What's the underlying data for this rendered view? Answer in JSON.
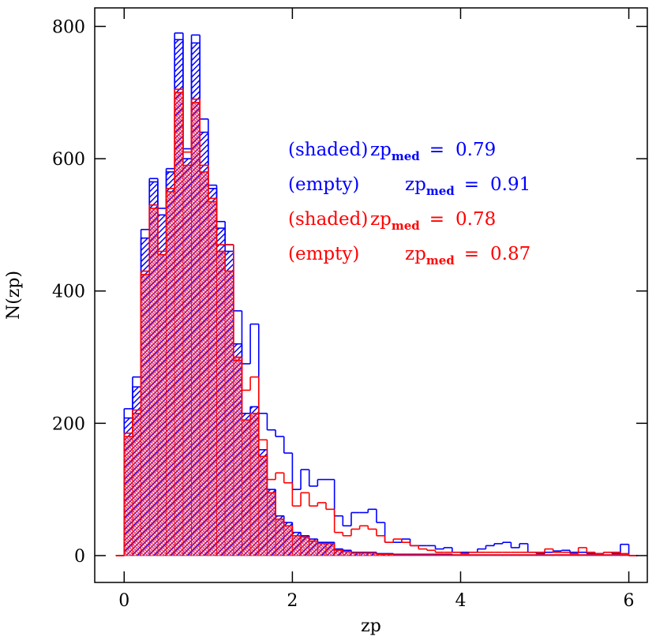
{
  "chart_data": {
    "type": "histogram",
    "x_label": "zp",
    "y_label": "N(zp)",
    "legend_symbol": "zp",
    "legend_subscript": "med",
    "legend_equals": "=",
    "xlim": [
      -0.35,
      6.22
    ],
    "ylim": [
      -40.6,
      828
    ],
    "xticks": [
      0,
      2,
      4,
      6
    ],
    "yticks": [
      0,
      200,
      400,
      600,
      800
    ],
    "bins": [
      -0.1,
      0,
      0.1,
      0.2,
      0.3,
      0.4,
      0.5,
      0.6,
      0.7,
      0.8,
      0.9,
      1,
      1.1,
      1.2,
      1.3,
      1.4,
      1.5,
      1.6,
      1.7,
      1.8,
      1.9,
      2,
      2.1,
      2.2,
      2.3,
      2.4,
      2.5,
      2.6,
      2.7,
      2.8,
      2.9,
      3,
      3.1,
      3.2,
      3.3,
      3.4,
      3.5,
      3.6,
      3.7,
      3.8,
      3.9,
      4,
      4.1,
      4.2,
      4.3,
      4.4,
      4.5,
      4.6,
      4.7,
      4.8,
      4.9,
      5,
      5.1,
      5.2,
      5.3,
      5.4,
      5.5,
      5.6,
      5.7,
      5.8,
      5.9,
      6,
      6.1
    ],
    "series": [
      {
        "name": "(shaded)",
        "color": "#0000ff",
        "fill": "hatched",
        "median": 0.79,
        "values": [
          0,
          208,
          255,
          480,
          565,
          515,
          580,
          780,
          600,
          775,
          640,
          555,
          495,
          460,
          320,
          215,
          225,
          160,
          100,
          60,
          50,
          35,
          30,
          25,
          20,
          20,
          10,
          8,
          5,
          5,
          5,
          3,
          3,
          2,
          2,
          2,
          2,
          2,
          2,
          2,
          1,
          1,
          1,
          1,
          1,
          1,
          1,
          1,
          1,
          1,
          1,
          1,
          1,
          1,
          1,
          1,
          1,
          1,
          1,
          1,
          1,
          0
        ]
      },
      {
        "name": "(empty)",
        "color": "#0000ff",
        "fill": "none",
        "median": 0.91,
        "values": [
          0,
          222,
          270,
          493,
          570,
          525,
          585,
          790,
          615,
          787,
          660,
          560,
          505,
          470,
          370,
          290,
          350,
          215,
          190,
          180,
          155,
          100,
          130,
          105,
          115,
          115,
          60,
          45,
          65,
          65,
          70,
          50,
          20,
          20,
          25,
          15,
          15,
          15,
          10,
          12,
          5,
          5,
          5,
          10,
          15,
          18,
          20,
          12,
          18,
          5,
          3,
          5,
          7,
          8,
          5,
          5,
          3,
          3,
          5,
          3,
          17,
          0
        ]
      },
      {
        "name": "(shaded)",
        "color": "#ff0000",
        "fill": "hatched",
        "median": 0.78,
        "values": [
          0,
          180,
          215,
          425,
          525,
          455,
          550,
          700,
          590,
          685,
          580,
          535,
          460,
          430,
          300,
          205,
          215,
          150,
          95,
          55,
          45,
          30,
          28,
          22,
          18,
          18,
          8,
          6,
          4,
          4,
          4,
          2,
          2,
          1,
          1,
          1,
          1,
          1,
          1,
          1,
          1,
          1,
          1,
          1,
          1,
          1,
          1,
          1,
          1,
          1,
          1,
          1,
          1,
          1,
          1,
          1,
          1,
          1,
          1,
          1,
          1,
          0
        ]
      },
      {
        "name": "(empty)",
        "color": "#ff0000",
        "fill": "none",
        "median": 0.87,
        "values": [
          0,
          185,
          220,
          430,
          530,
          460,
          555,
          705,
          610,
          690,
          590,
          540,
          470,
          470,
          295,
          250,
          270,
          175,
          115,
          125,
          110,
          75,
          95,
          75,
          80,
          70,
          35,
          30,
          40,
          45,
          40,
          30,
          20,
          25,
          20,
          15,
          10,
          8,
          5,
          5,
          5,
          3,
          5,
          5,
          5,
          5,
          5,
          5,
          5,
          5,
          5,
          10,
          5,
          5,
          3,
          12,
          5,
          3,
          5,
          5,
          3,
          0
        ]
      }
    ]
  }
}
